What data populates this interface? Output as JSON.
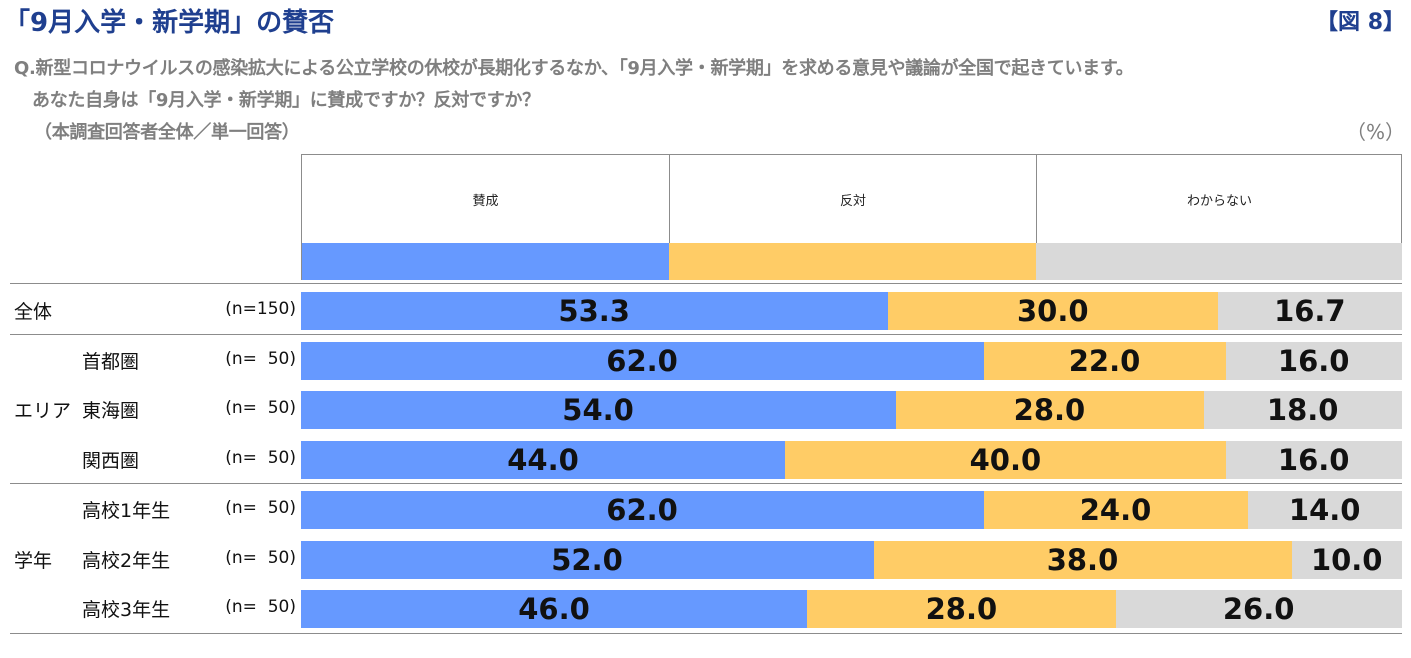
{
  "header": {
    "title": "「9月入学・新学期」の賛否",
    "figure_label": "【図 8】",
    "question_line1": "Q.新型コロナウイルスの感染拡大による公立学校の休校が長期化するなか、「9月入学・新学期」を求める意見や議論が全国で起きています。",
    "question_line2": "あなた自身は「9月入学・新学期」に賛成ですか？反対ですか？",
    "question_line3": "（本調査回答者全体／単一回答）",
    "unit": "（%）"
  },
  "colors": {
    "agree": "#6699ff",
    "disagree": "#ffcc66",
    "unknown": "#d9d9d9"
  },
  "chart_data": {
    "type": "bar",
    "orientation": "horizontal-stacked-100",
    "legend": [
      "賛成",
      "反対",
      "わからない"
    ],
    "groups": [
      {
        "label": "",
        "rows": [
          0
        ]
      },
      {
        "label": "エリア",
        "rows": [
          1,
          2,
          3
        ]
      },
      {
        "label": "学年",
        "rows": [
          4,
          5,
          6
        ]
      }
    ],
    "categories": [
      "全体",
      "首都圏",
      "東海圏",
      "関西圏",
      "高校1年生",
      "高校2年生",
      "高校3年生"
    ],
    "n_labels": [
      "(n=150)",
      "(n=  50)",
      "(n=  50)",
      "(n=  50)",
      "(n=  50)",
      "(n=  50)",
      "(n=  50)"
    ],
    "series": [
      {
        "name": "賛成",
        "values": [
          53.3,
          62.0,
          54.0,
          44.0,
          62.0,
          52.0,
          46.0
        ],
        "labels": [
          "53.3",
          "62.0",
          "54.0",
          "44.0",
          "62.0",
          "52.0",
          "46.0"
        ]
      },
      {
        "name": "反対",
        "values": [
          30.0,
          22.0,
          28.0,
          40.0,
          24.0,
          38.0,
          28.0
        ],
        "labels": [
          "30.0",
          "22.0",
          "28.0",
          "40.0",
          "24.0",
          "38.0",
          "28.0"
        ]
      },
      {
        "name": "わからない",
        "values": [
          16.7,
          16.0,
          18.0,
          16.0,
          14.0,
          10.0,
          26.0
        ],
        "labels": [
          "16.7",
          "16.0",
          "18.0",
          "16.0",
          "14.0",
          "10.0",
          "26.0"
        ]
      }
    ],
    "xlim": [
      0,
      100
    ]
  }
}
